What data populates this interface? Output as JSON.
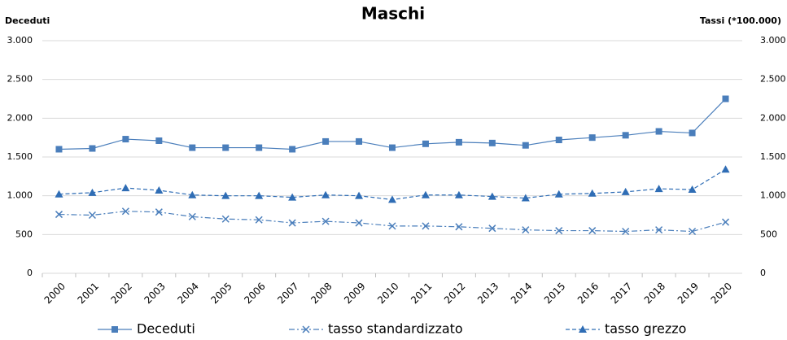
{
  "chart_data": {
    "type": "line",
    "title": "Maschi",
    "y_label": "Deceduti",
    "y2_label": "Tassi (*100.000)",
    "categories": [
      "2000",
      "2001",
      "2002",
      "2003",
      "2004",
      "2005",
      "2006",
      "2007",
      "2008",
      "2009",
      "2010",
      "2011",
      "2012",
      "2013",
      "2014",
      "2015",
      "2016",
      "2017",
      "2018",
      "2019",
      "2020"
    ],
    "ylim": [
      0,
      3000
    ],
    "yticks": [
      0,
      {
        "value": 500,
        "label": "500"
      },
      {
        "value": 1000,
        "label": "1.000"
      },
      {
        "value": 1500,
        "label": "1.500"
      },
      {
        "value": 2000,
        "label": "2.000"
      },
      {
        "value": 2500,
        "label": "2.500"
      },
      {
        "value": 3000,
        "label": "3.000"
      }
    ],
    "y2lim": [
      0,
      3000
    ],
    "y2ticks": [
      0,
      {
        "value": 500,
        "label": "500"
      },
      {
        "value": 1000,
        "label": "1.000"
      },
      {
        "value": 1500,
        "label": "1.500"
      },
      {
        "value": 2000,
        "label": "2.000"
      },
      {
        "value": 2500,
        "label": "2.500"
      },
      {
        "value": 3000,
        "label": "3.000"
      }
    ],
    "grid": true,
    "legend": "bottom",
    "series": [
      {
        "name": "Deceduti",
        "color": "#4a7ebb",
        "dash": "solid",
        "marker": "square",
        "values": [
          1600,
          1610,
          1730,
          1710,
          1620,
          1620,
          1620,
          1600,
          1700,
          1700,
          1620,
          1670,
          1690,
          1680,
          1650,
          1720,
          1750,
          1780,
          1830,
          1810,
          2250
        ]
      },
      {
        "name": "tasso standardizzato",
        "color": "#4a7ebb",
        "dash": "dashdot",
        "marker": "x",
        "axis": "y2",
        "values": [
          760,
          750,
          800,
          790,
          730,
          700,
          690,
          650,
          670,
          650,
          610,
          610,
          600,
          580,
          560,
          550,
          550,
          540,
          560,
          540,
          660
        ]
      },
      {
        "name": "tasso grezzo",
        "color": "#2f6db5",
        "dash": "dashed",
        "marker": "triangle",
        "axis": "y2",
        "values": [
          1020,
          1040,
          1100,
          1070,
          1010,
          1000,
          1000,
          980,
          1010,
          1000,
          950,
          1010,
          1010,
          990,
          970,
          1020,
          1030,
          1050,
          1090,
          1080,
          1340
        ]
      }
    ]
  }
}
